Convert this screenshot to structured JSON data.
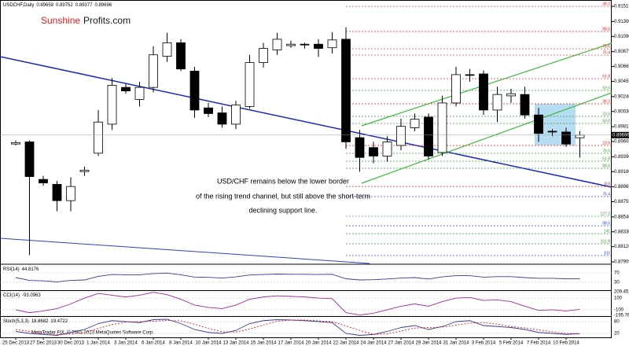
{
  "chart_data": {
    "type": "candlestick",
    "symbol": "USDCHF,Daily",
    "logo_red": "Sunshine",
    "logo_dark": "Profits.com",
    "annotation": [
      "USD/CHF remains below the lower border",
      "of the rising trend channel, but still above the short-term",
      "declining support line."
    ],
    "categories": [
      "25 Dec 2013",
      null,
      "27 Dec 2013",
      null,
      "30 Dec 2013",
      null,
      "1 Jan 2014",
      null,
      "3 Jan 2014",
      null,
      "6 Jan 2014",
      null,
      "8 Jan 2014",
      null,
      "10 Jan 2014",
      null,
      "13 Jan 2014",
      null,
      "15 Jan 2014",
      null,
      "17 Jan 2014",
      null,
      "20 Jan 2014",
      null,
      "22 Jan 2014",
      null,
      "24 Jan 2014",
      null,
      "27 Jan 2014",
      null,
      "29 Jan 2014",
      null,
      "31 Jan 2014",
      null,
      "3 Feb 2014",
      null,
      "5 Feb 2014",
      null,
      "7 Feb 2014",
      null,
      "10 Feb 2014",
      null
    ],
    "open": [
      0.8957,
      0.896,
      0.8907,
      0.89,
      0.8877,
      0.8918,
      0.8944,
      0.8985,
      0.9037,
      0.902,
      0.9037,
      0.9081,
      0.91,
      0.906,
      0.9008,
      0.9001,
      0.8985,
      0.901,
      0.9072,
      0.909,
      0.9096,
      0.9098,
      0.9098,
      0.9093,
      0.9105,
      0.8966,
      0.8952,
      0.894,
      0.8955,
      0.898,
      0.8995,
      0.8945,
      0.9015,
      0.9055,
      0.9056,
      0.9005,
      0.9025,
      0.9027,
      0.8998,
      0.8975,
      0.8974,
      0.89658
    ],
    "high": [
      0.8962,
      0.8962,
      0.8912,
      0.8905,
      0.891,
      0.8925,
      0.9005,
      0.905,
      0.9042,
      0.9045,
      0.9095,
      0.9114,
      0.9105,
      0.9066,
      0.9015,
      0.901,
      0.9018,
      0.9083,
      0.91,
      0.9114,
      0.9103,
      0.91,
      0.9105,
      0.9115,
      0.9122,
      0.8977,
      0.896,
      0.8968,
      0.8993,
      0.9,
      0.9,
      0.9025,
      0.9066,
      0.9063,
      0.9061,
      0.9038,
      0.9035,
      0.9038,
      0.9008,
      0.8978,
      0.898,
      0.89752
    ],
    "low": [
      0.8955,
      0.88,
      0.8898,
      0.8862,
      0.8862,
      0.8912,
      0.894,
      0.8977,
      0.9028,
      0.901,
      0.903,
      0.9073,
      0.906,
      0.8994,
      0.8995,
      0.898,
      0.8978,
      0.9007,
      0.9065,
      0.9083,
      0.9093,
      0.9092,
      0.908,
      0.9085,
      0.895,
      0.8918,
      0.893,
      0.8932,
      0.8948,
      0.8975,
      0.8935,
      0.894,
      0.901,
      0.9045,
      0.8998,
      0.8988,
      0.9015,
      0.8993,
      0.896,
      0.8968,
      0.8953,
      0.89377
    ],
    "close": [
      0.8959,
      0.8911,
      0.8902,
      0.8877,
      0.8897,
      0.892,
      0.8988,
      0.904,
      0.9032,
      0.9037,
      0.9083,
      0.91,
      0.9063,
      0.9005,
      0.9,
      0.8985,
      0.9012,
      0.9072,
      0.9092,
      0.9105,
      0.9098,
      0.9097,
      0.9092,
      0.9104,
      0.896,
      0.8938,
      0.894,
      0.896,
      0.8982,
      0.8992,
      0.894,
      0.9015,
      0.9055,
      0.9054,
      0.9005,
      0.9027,
      0.9028,
      0.8998,
      0.8972,
      0.8974,
      0.8957,
      0.89696
    ],
    "up_color": "#ffffff",
    "down_color": "#000000",
    "ylim": [
      0.87883,
      0.91571
    ],
    "yticks": [
      0.91515,
      {
        "value": 0.913,
        "label": "0.91300"
      },
      {
        "value": 0.9109,
        "label": "0.91090"
      },
      0.90875,
      0.90665,
      0.90455,
      {
        "value": 0.9024,
        "label": "0.90240"
      },
      {
        "value": 0.9003,
        "label": "0.90030"
      },
      0.89815,
      0.89605,
      {
        "value": 0.8939,
        "label": "0.89390"
      },
      {
        "value": 0.8918,
        "label": "0.89180"
      },
      0.88965,
      0.88755,
      {
        "value": 0.8854,
        "label": "0.88540"
      },
      {
        "value": 0.8833,
        "label": "0.88330"
      },
      {
        "value": 0.8812,
        "label": "0.88120"
      },
      0.87905
    ],
    "levels": [
      {
        "label": "38.2",
        "value": 0.91515,
        "color": "#e02020"
      },
      {
        "label": "88.6",
        "value": 0.9116,
        "color": "#e02020"
      },
      {
        "label": "78.6",
        "value": 0.90915,
        "color": "#e02020"
      },
      {
        "label": "76.4",
        "value": 0.90826,
        "color": "#e02020"
      },
      {
        "label": "61.8",
        "value": 0.90493,
        "color": "#e02020"
      },
      {
        "label": "50.0",
        "value": 0.90327,
        "color": "#3a9a3a"
      },
      {
        "label": "38.2",
        "value": 0.90138,
        "color": "#e02020"
      },
      {
        "label": "23.6",
        "value": 0.8996,
        "color": "#3a9a3a"
      },
      {
        "label": "50.0",
        "value": 0.8986,
        "color": "#3a9a3a"
      },
      {
        "label": "23.6",
        "value": 0.89549,
        "color": "#e02020"
      },
      {
        "label": "78.6",
        "value": 0.89438,
        "color": "#3a9a3a"
      },
      {
        "label": "61.8",
        "value": 0.89327,
        "color": "#3a9a3a"
      },
      {
        "label": "88.6",
        "value": 0.89227,
        "color": "#3a9a3a"
      },
      {
        "label": "0.0",
        "value": 0.88971,
        "color": "#c00000"
      },
      {
        "label": "76.4",
        "value": 0.88827,
        "color": "#3050d0"
      },
      {
        "label": "127.2",
        "value": 0.88549,
        "color": "#3a9a3a"
      },
      {
        "label": "88.6",
        "value": 0.88415,
        "color": "#3050d0"
      },
      {
        "label": "141",
        "value": 0.88304,
        "color": "#3a9a3a"
      },
      {
        "label": "161.8",
        "value": 0.88161,
        "color": "#3a9a3a"
      },
      {
        "label": "100",
        "value": 0.87994,
        "color": "#3050d0"
      }
    ],
    "indicators": [
      {
        "name": "RSI(14)",
        "ylim": [
          0,
          100
        ],
        "yticks": [
          70,
          30
        ],
        "series": [
          {
            "color": "#3a3a9a",
            "values": [
              50,
              38,
              36,
              32,
              38,
              40,
              55,
              63,
              62,
              62,
              67,
              69,
              62,
              52,
              51,
              48,
              53,
              61,
              63,
              65,
              64,
              64,
              63,
              64,
              45,
              40,
              41,
              44,
              48,
              50,
              44,
              53,
              58,
              58,
              52,
              54,
              54,
              50,
              47,
              47,
              45,
              44.8176
            ]
          }
        ]
      },
      {
        "name": "CCI(14)",
        "ylim": [
          -195.7603,
          209.451
        ],
        "yticks": [
          209.451,
          100,
          -100,
          -195.7603
        ],
        "series": [
          {
            "color": "#9b2a9b",
            "values": [
              -100,
              -150,
              -120,
              -80,
              0,
              100,
              180,
              150,
              120,
              150,
              200,
              160,
              80,
              -20,
              -60,
              -80,
              -20,
              80,
              120,
              140,
              130,
              120,
              100,
              90,
              -150,
              -190,
              -160,
              -100,
              -40,
              0,
              -40,
              40,
              100,
              110,
              60,
              70,
              40,
              -40,
              -110,
              -100,
              -120,
              -93.0963
            ]
          }
        ]
      },
      {
        "name": "Stoch(5,3,3)",
        "ylim": [
          0,
          100
        ],
        "yticks": [
          80,
          20
        ],
        "series": [
          {
            "color": "#3a3a9a",
            "values": [
              30,
              20,
              15,
              10,
              25,
              40,
              70,
              85,
              80,
              75,
              90,
              92,
              70,
              40,
              25,
              20,
              35,
              70,
              85,
              90,
              88,
              85,
              80,
              75,
              20,
              10,
              15,
              30,
              50,
              60,
              40,
              55,
              80,
              85,
              60,
              55,
              50,
              40,
              25,
              20,
              15,
              18.8682
            ]
          },
          {
            "color": "#d02020",
            "dashed": true,
            "values": [
              40,
              30,
              22,
              15,
              17,
              25,
              45,
              65,
              78,
              80,
              82,
              86,
              84,
              67,
              45,
              28,
              27,
              42,
              63,
              82,
              88,
              88,
              84,
              80,
              58,
              35,
              15,
              18,
              32,
              47,
              50,
              52,
              62,
              73,
              75,
              67,
              55,
              48,
              38,
              28,
              20,
              19.4722
            ]
          }
        ]
      }
    ],
    "footer": "MetaTrader FIX, © 2001-2013 MetaQuotes Software Corp."
  }
}
